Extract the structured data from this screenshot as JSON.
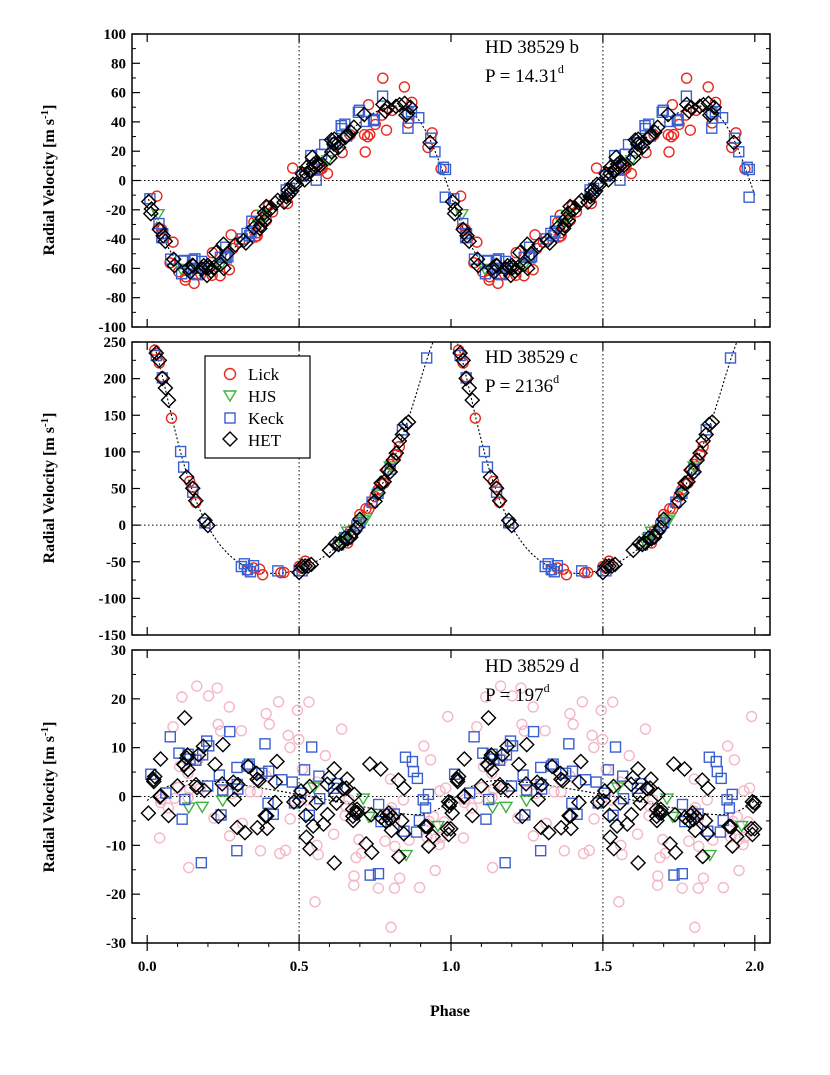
{
  "chart_data": {
    "type": "scatter",
    "x_label": "Phase",
    "x_range": [
      -0.05,
      2.05
    ],
    "x_ticks": [
      0.0,
      0.5,
      1.0,
      1.5,
      2.0
    ],
    "x_tick_labels": [
      "0.0",
      "0.5",
      "1.0",
      "1.5",
      "2.0"
    ],
    "legend": {
      "placement": "upper-left of middle panel",
      "entries": [
        {
          "name": "Lick",
          "marker": "circle",
          "color": "#e8281e"
        },
        {
          "name": "HJS",
          "marker": "triangle-down",
          "color": "#3cb33c"
        },
        {
          "name": "Keck",
          "marker": "square",
          "color": "#3a5fd0"
        },
        {
          "name": "HET",
          "marker": "diamond",
          "color": "#000000"
        }
      ]
    },
    "panels": [
      {
        "id": "b",
        "title_name": "HD 38529 b",
        "period_label": "P = 14.31",
        "period_sup": "d",
        "ylabel": "Radial Velocity [m s",
        "ylabel_sup": "-1",
        "ylabel_close": "]",
        "ylim": [
          -100,
          100
        ],
        "y_ticks": [
          -100,
          -80,
          -60,
          -40,
          -20,
          0,
          20,
          40,
          60,
          80,
          100
        ],
        "y_tick_labels": [
          "-100",
          "-80",
          "-60",
          "-40",
          "-20",
          "0",
          "20",
          "40",
          "60",
          "80",
          "100"
        ],
        "model": {
          "kind": "keplerian",
          "K": 56,
          "e": 0.25,
          "omega_deg": 95,
          "gamma": -4
        },
        "series": [
          {
            "name": "Lick",
            "n": 50,
            "scatter": 9,
            "seed": 11
          },
          {
            "name": "HJS",
            "n": 6,
            "scatter": 5,
            "seed": 12
          },
          {
            "name": "Keck",
            "n": 55,
            "scatter": 5,
            "seed": 13
          },
          {
            "name": "HET",
            "n": 80,
            "scatter": 4,
            "seed": 14
          }
        ]
      },
      {
        "id": "c",
        "title_name": "HD 38529 c",
        "period_label": "P = 2136",
        "period_sup": "d",
        "ylabel": "Radial Velocity [m s",
        "ylabel_sup": "-1",
        "ylabel_close": "]",
        "ylim": [
          -150,
          250
        ],
        "y_ticks": [
          -150,
          -100,
          -50,
          0,
          50,
          100,
          150,
          200,
          250
        ],
        "y_tick_labels": [
          "-150",
          "-100",
          "-50",
          "0",
          "50",
          "100",
          "150",
          "200",
          "250"
        ],
        "model": {
          "kind": "keplerian",
          "K": 170,
          "e": 0.36,
          "omega_deg": 15,
          "gamma": 45,
          "peri_phase": 0.0
        },
        "series": [
          {
            "name": "Lick",
            "phases": [
              0.01,
              0.02,
              0.025,
              0.03,
              0.04,
              0.05,
              0.08,
              0.14,
              0.15,
              0.16,
              0.33,
              0.35,
              0.37,
              0.38,
              0.44,
              0.45,
              0.5,
              0.51,
              0.52,
              0.66,
              0.67,
              0.7,
              0.72,
              0.73,
              0.74,
              0.75,
              0.76,
              0.77,
              0.78,
              0.79,
              0.8,
              0.81,
              0.82,
              0.83
            ],
            "scatter": 4
          },
          {
            "name": "HJS",
            "phases": [
              0.64,
              0.65,
              0.66,
              0.71,
              0.72,
              0.76,
              0.8
            ],
            "scatter": 3
          },
          {
            "name": "Keck",
            "phases": [
              0.03,
              0.05,
              0.11,
              0.12,
              0.15,
              0.19,
              0.31,
              0.32,
              0.33,
              0.34,
              0.35,
              0.43,
              0.5,
              0.51,
              0.63,
              0.65,
              0.67,
              0.69,
              0.7,
              0.74,
              0.76,
              0.8,
              0.84,
              0.92,
              0.95,
              0.96,
              0.97,
              0.98
            ],
            "scatter": 3
          },
          {
            "name": "HET",
            "phases": [
              0.0,
              0.01,
              0.015,
              0.03,
              0.04,
              0.05,
              0.06,
              0.07,
              0.13,
              0.15,
              0.16,
              0.19,
              0.2,
              0.5,
              0.51,
              0.52,
              0.53,
              0.54,
              0.6,
              0.62,
              0.63,
              0.64,
              0.65,
              0.66,
              0.67,
              0.68,
              0.69,
              0.7,
              0.75,
              0.76,
              0.77,
              0.78,
              0.79,
              0.8,
              0.81,
              0.82,
              0.83,
              0.84,
              0.85,
              0.86
            ],
            "scatter": 3
          }
        ]
      },
      {
        "id": "d",
        "title_name": "HD 38529 d",
        "period_label": "P = 197",
        "period_sup": "d",
        "ylabel": "Radial Velocity [m s",
        "ylabel_sup": "-1",
        "ylabel_close": "]",
        "ylim": [
          -30,
          30
        ],
        "y_ticks": [
          -30,
          -20,
          -10,
          0,
          10,
          20,
          30
        ],
        "y_tick_labels": [
          "-30",
          "-20",
          "-10",
          "0",
          "10",
          "20",
          "30"
        ],
        "model": {
          "kind": "keplerian",
          "K": 3.5,
          "e": 0.35,
          "omega_deg": 260,
          "gamma": 0
        },
        "series": [
          {
            "name": "Lick",
            "n": 90,
            "scatter": 11,
            "seed": 31,
            "faded": true
          },
          {
            "name": "HJS",
            "n": 8,
            "scatter": 6,
            "seed": 32
          },
          {
            "name": "Keck",
            "n": 55,
            "scatter": 7,
            "seed": 33
          },
          {
            "name": "HET",
            "n": 95,
            "scatter": 5,
            "seed": 34
          }
        ]
      }
    ]
  }
}
